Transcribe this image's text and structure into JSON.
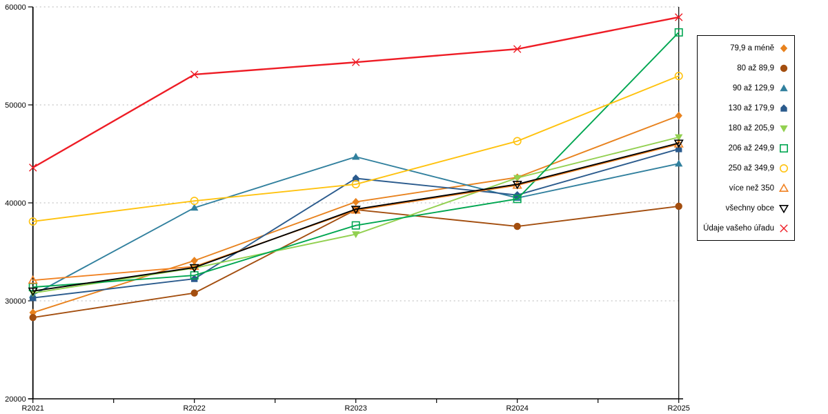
{
  "chart_data": {
    "type": "line",
    "title": "",
    "xlabel": "",
    "ylabel": "",
    "x_categories": [
      "R2021",
      "R2022",
      "R2023",
      "R2024",
      "R2025"
    ],
    "ylim": [
      20000,
      60000
    ],
    "ytick_step": 10000,
    "ytick_labels": [
      "20000",
      "30000",
      "40000",
      "50000",
      "60000"
    ],
    "grid": "horizontal-dashed",
    "gridline_color": "#b5b5b5",
    "axis_color": "#000000",
    "legend_position": "right-box",
    "series": [
      {
        "name": "79,9 a méně",
        "color": "#E8821E",
        "marker": "diamond-filled",
        "values": [
          28800,
          34100,
          40100,
          42600,
          48900
        ]
      },
      {
        "name": "80 až 89,9",
        "color": "#A34E0F",
        "marker": "circle-filled",
        "values": [
          28300,
          30800,
          39300,
          37600,
          39650
        ]
      },
      {
        "name": "90 až 129,9",
        "color": "#31809E",
        "marker": "triangle-up-filled",
        "values": [
          30600,
          39500,
          44700,
          40500,
          44000
        ]
      },
      {
        "name": "130 až 179,9",
        "color": "#2B5B8D",
        "marker": "pentagon-filled",
        "values": [
          30300,
          32250,
          42500,
          40800,
          45500
        ]
      },
      {
        "name": "180 až 205,9",
        "color": "#92D050",
        "marker": "triangle-down-filled",
        "values": [
          30800,
          33350,
          36800,
          42550,
          46700
        ]
      },
      {
        "name": "206 až 249,9",
        "color": "#00A651",
        "marker": "square-open",
        "values": [
          31400,
          32600,
          37700,
          40400,
          57400
        ]
      },
      {
        "name": "250 až 349,9",
        "color": "#FFC20E",
        "marker": "circle-open",
        "values": [
          38100,
          40200,
          41900,
          46300,
          52950
        ]
      },
      {
        "name": "více než 350",
        "color": "#F08223",
        "marker": "triangle-up-open",
        "values": [
          32100,
          33500,
          39250,
          41800,
          46000
        ]
      },
      {
        "name": "všechny obce",
        "color": "#000000",
        "marker": "triangle-down-open",
        "values": [
          31000,
          33400,
          39350,
          41900,
          46100
        ]
      },
      {
        "name": "Údaje vašeho úřadu",
        "color": "#EE1C25",
        "marker": "x-cross",
        "values": [
          43600,
          53100,
          54350,
          55700,
          58950
        ]
      }
    ]
  }
}
